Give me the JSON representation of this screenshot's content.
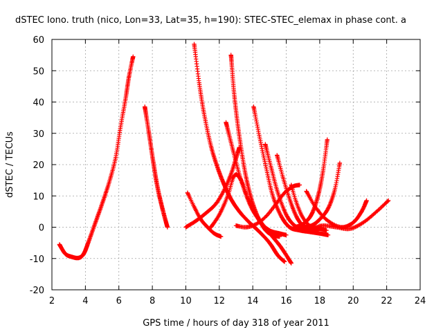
{
  "chart_data": {
    "type": "scatter",
    "title": "dSTEC Iono. truth (nico, Lon=33, Lat=35, h=190): STEC-STEC_elemax in phase cont. a",
    "xlabel": "GPS time / hours of day 318 of year 2011",
    "ylabel": "dSTEC  / TECUs",
    "xlim": [
      2,
      24
    ],
    "ylim": [
      -20,
      60
    ],
    "xticks": [
      "2",
      "4",
      "6",
      "8",
      "10",
      "12",
      "14",
      "16",
      "18",
      "20",
      "22",
      "24"
    ],
    "yticks": [
      "-20",
      "-10",
      "0",
      "10",
      "20",
      "30",
      "40",
      "50",
      "60"
    ],
    "grid": true,
    "marker": "plus",
    "color": "#ff0000",
    "series": [
      {
        "x": [
          2.45,
          2.8,
          3.2,
          3.6,
          3.9,
          4.2,
          4.6,
          5.0,
          5.4,
          5.8,
          6.1,
          6.4,
          6.6,
          6.85
        ],
        "y": [
          -5.5,
          -8.5,
          -9.5,
          -9.8,
          -8.5,
          -4.5,
          1.5,
          7.5,
          14.0,
          22.0,
          32.0,
          41.0,
          48.0,
          54.5
        ]
      },
      {
        "x": [
          7.55,
          7.8,
          8.05,
          8.3,
          8.6,
          8.9
        ],
        "y": [
          38.5,
          30.0,
          21.0,
          13.0,
          6.0,
          0.0
        ]
      },
      {
        "x": [
          10.1,
          10.5,
          10.9,
          11.3,
          11.7,
          12.1
        ],
        "y": [
          11.0,
          6.5,
          2.5,
          0.0,
          -2.0,
          -3.0
        ]
      },
      {
        "x": [
          10.5,
          10.8,
          11.1,
          11.5,
          11.9,
          12.3,
          12.7,
          13.2,
          13.8,
          14.4,
          15.0,
          15.5,
          15.9
        ],
        "y": [
          58.5,
          46.0,
          36.0,
          26.0,
          19.0,
          13.5,
          9.0,
          5.0,
          1.5,
          -1.5,
          -5.0,
          -9.0,
          -11.0
        ]
      },
      {
        "x": [
          10.0,
          10.6,
          11.2,
          11.8,
          12.3,
          12.7,
          13.0,
          13.2
        ],
        "y": [
          0.0,
          2.0,
          4.5,
          7.5,
          12.0,
          17.0,
          22.0,
          25.5
        ]
      },
      {
        "x": [
          12.4,
          12.8,
          13.3,
          13.9,
          14.5,
          15.1,
          15.7,
          16.3
        ],
        "y": [
          33.5,
          25.0,
          15.0,
          6.5,
          1.5,
          -2.5,
          -6.5,
          -11.5
        ]
      },
      {
        "x": [
          12.7,
          12.9,
          13.2,
          13.6,
          14.1,
          14.7,
          15.2,
          15.6
        ],
        "y": [
          55.0,
          42.0,
          29.0,
          16.0,
          6.0,
          -0.5,
          -2.5,
          -3.0
        ]
      },
      {
        "x": [
          11.5,
          12.0,
          12.5,
          12.9,
          13.3,
          13.8,
          14.4,
          15.0,
          15.6,
          16.0
        ],
        "y": [
          0.0,
          4.0,
          10.0,
          16.5,
          15.0,
          8.0,
          2.0,
          -1.0,
          -2.0,
          -2.5
        ]
      },
      {
        "x": [
          14.05,
          14.4,
          14.8,
          15.2,
          15.7,
          16.2,
          16.8,
          17.4,
          18.0,
          18.5
        ],
        "y": [
          38.5,
          29.0,
          19.0,
          10.0,
          3.5,
          0.0,
          -1.0,
          -1.5,
          -2.0,
          -2.5
        ]
      },
      {
        "x": [
          13.0,
          13.6,
          14.2,
          14.8,
          15.4,
          15.9,
          16.4,
          16.8
        ],
        "y": [
          0.5,
          0.0,
          1.0,
          3.5,
          7.5,
          11.0,
          13.0,
          13.5
        ]
      },
      {
        "x": [
          14.75,
          15.1,
          15.5,
          16.0,
          16.5,
          17.0,
          17.5
        ],
        "y": [
          26.5,
          19.0,
          11.0,
          4.0,
          0.5,
          -0.5,
          -1.0
        ]
      },
      {
        "x": [
          15.45,
          15.8,
          16.2,
          16.6,
          17.0,
          17.5,
          18.0
        ],
        "y": [
          23.0,
          16.0,
          9.0,
          3.5,
          0.5,
          -0.5,
          -0.5
        ]
      },
      {
        "x": [
          16.3,
          16.6,
          17.0,
          17.5,
          18.0,
          18.4
        ],
        "y": [
          13.5,
          8.0,
          3.0,
          0.0,
          -0.5,
          -1.0
        ]
      },
      {
        "x": [
          16.5,
          17.0,
          17.5,
          17.9,
          18.2,
          18.45
        ],
        "y": [
          0.0,
          1.0,
          4.0,
          10.0,
          18.0,
          28.0
        ]
      },
      {
        "x": [
          16.9,
          17.5,
          18.0,
          18.5,
          18.9,
          19.2
        ],
        "y": [
          0.0,
          0.5,
          2.5,
          6.0,
          12.0,
          20.5
        ]
      },
      {
        "x": [
          17.2,
          17.8,
          18.5,
          19.3,
          20.0,
          20.5,
          20.8
        ],
        "y": [
          11.5,
          6.0,
          2.0,
          0.0,
          1.5,
          5.0,
          8.5
        ]
      },
      {
        "x": [
          16.8,
          17.5,
          18.2,
          19.0,
          19.8,
          20.6,
          21.4,
          22.1
        ],
        "y": [
          -0.5,
          -0.5,
          0.5,
          0.0,
          -0.5,
          1.5,
          5.0,
          8.5
        ]
      }
    ]
  }
}
